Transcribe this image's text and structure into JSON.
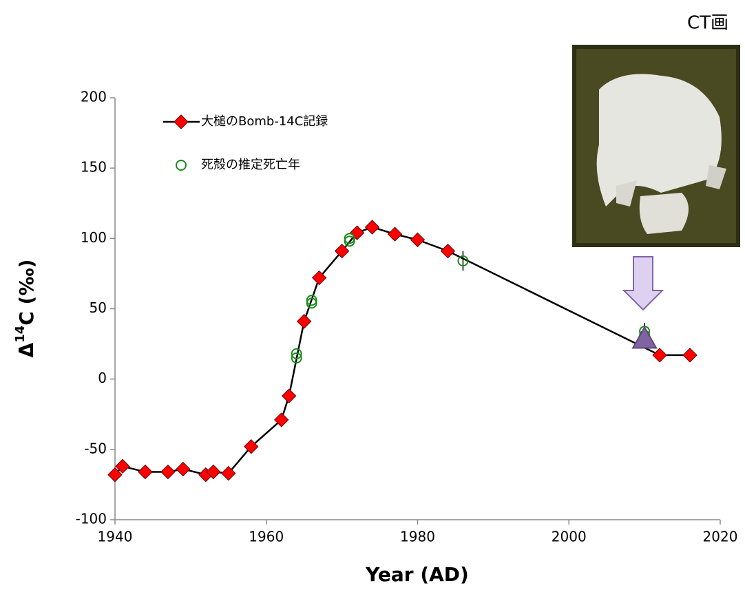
{
  "chart_data": {
    "type": "scatter",
    "corner_text": "CT画",
    "xlabel": "Year (AD)",
    "ylabel": {
      "base": "Δ",
      "sup": "14",
      "rest": "C (‰)"
    },
    "xlim": [
      1940,
      2020
    ],
    "xticks": [
      1940,
      1960,
      1980,
      2000,
      2020
    ],
    "ylim": [
      -100,
      200
    ],
    "yticks": [
      -100,
      -50,
      0,
      50,
      100,
      150,
      200
    ],
    "legend": "upper left",
    "series": [
      {
        "name": "大槌のBomb-14C記録",
        "color": "#ff0000",
        "marker": "diamond",
        "line": true,
        "x": [
          1940,
          1941,
          1944,
          1947,
          1949,
          1952,
          1953,
          1955,
          1958,
          1962,
          1963,
          1965,
          1967,
          1970,
          1972,
          1974,
          1977,
          1980,
          1984,
          2012,
          2016
        ],
        "values": [
          -68,
          -62,
          -66,
          -66,
          -64,
          -68,
          -66,
          -67,
          -48,
          -29,
          -12,
          41,
          72,
          91,
          104,
          108,
          103,
          99,
          91,
          17,
          17
        ]
      },
      {
        "name": "死殻の推定死亡年",
        "color": "#1a8a1a",
        "marker": "circle",
        "line": false,
        "x": [
          1964,
          1964,
          1966,
          1966,
          1971,
          1971,
          1986,
          2010,
          2010
        ],
        "values": [
          18,
          15,
          56,
          54,
          100,
          98,
          84,
          34,
          31
        ],
        "errors": [
          null,
          null,
          null,
          null,
          null,
          null,
          7,
          6,
          null
        ]
      },
      {
        "color": "#8064a2",
        "marker": "triangle",
        "line": false,
        "x": [
          2010
        ],
        "values": [
          28
        ]
      }
    ]
  }
}
